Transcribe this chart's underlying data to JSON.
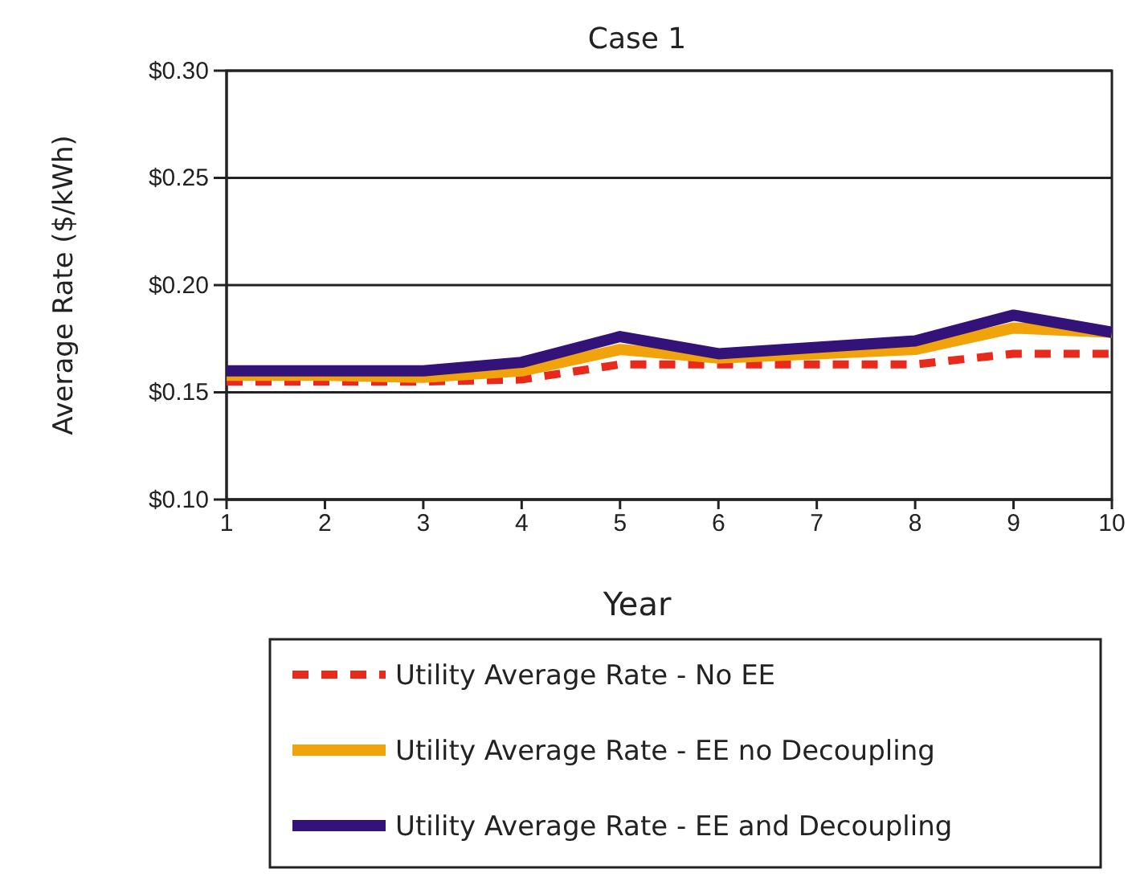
{
  "chart_data": {
    "type": "line",
    "title": "Case 1",
    "xlabel": "Year",
    "ylabel": "Average Rate ($/kWh)",
    "x": [
      1,
      2,
      3,
      4,
      5,
      6,
      7,
      8,
      9,
      10
    ],
    "xlim": [
      1,
      10
    ],
    "xticks": [
      1,
      2,
      3,
      4,
      5,
      6,
      7,
      8,
      9,
      10
    ],
    "ylim": [
      0.1,
      0.3
    ],
    "yticks": [
      {
        "value": 0.1,
        "label": "$0.10"
      },
      {
        "value": 0.15,
        "label": "$0.15"
      },
      {
        "value": 0.2,
        "label": "$0.20"
      },
      {
        "value": 0.25,
        "label": "$0.25"
      },
      {
        "value": 0.3,
        "label": "$0.30"
      }
    ],
    "grid": "y",
    "legend": "bottom",
    "series": [
      {
        "name": "Utility Average Rate - No EE",
        "color": "#e8291c",
        "line_style": "dashed",
        "values": [
          0.155,
          0.155,
          0.155,
          0.156,
          0.163,
          0.163,
          0.163,
          0.163,
          0.168,
          0.168
        ]
      },
      {
        "name": "Utility Average Rate - EE no Decoupling",
        "color": "#f0a30a",
        "line_style": "solid",
        "values": [
          0.158,
          0.158,
          0.157,
          0.16,
          0.17,
          0.166,
          0.168,
          0.17,
          0.18,
          0.178
        ]
      },
      {
        "name": "Utility Average Rate - EE and Decoupling",
        "color": "#33137a",
        "line_style": "solid",
        "values": [
          0.16,
          0.16,
          0.16,
          0.164,
          0.176,
          0.168,
          0.171,
          0.174,
          0.186,
          0.178
        ]
      }
    ]
  }
}
